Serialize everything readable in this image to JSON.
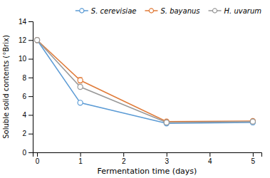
{
  "chart_data": {
    "type": "line",
    "xlabel": "Fermentation time (days)",
    "ylabel": "Soluble solid contents (°Brix)",
    "x": [
      0,
      1,
      3,
      5
    ],
    "series": [
      {
        "name": "S. cerevisiae",
        "color": "#5b9bd5",
        "values": [
          12.0,
          5.3,
          3.1,
          3.2
        ],
        "errors": [
          0.0,
          0.15,
          0.0,
          0.0
        ],
        "marker": "circle",
        "line_style": "solid"
      },
      {
        "name": "S. bayanus",
        "color": "#e07b39",
        "values": [
          12.0,
          7.7,
          3.3,
          3.35
        ],
        "errors": [
          0.0,
          0.3,
          0.0,
          0.0
        ],
        "marker": "circle",
        "line_style": "solid"
      },
      {
        "name": "H. uvarum",
        "color": "#999999",
        "values": [
          12.0,
          7.0,
          3.2,
          3.3
        ],
        "errors": [
          0.0,
          0.2,
          0.0,
          0.0
        ],
        "marker": "circle",
        "line_style": "solid"
      }
    ],
    "xlim": [
      -0.1,
      5.2
    ],
    "ylim": [
      0,
      14
    ],
    "xticks": [
      0,
      1,
      2,
      3,
      4,
      5
    ],
    "yticks": [
      0,
      2,
      4,
      6,
      8,
      10,
      12,
      14
    ],
    "grid": false,
    "legend": "upper right"
  }
}
